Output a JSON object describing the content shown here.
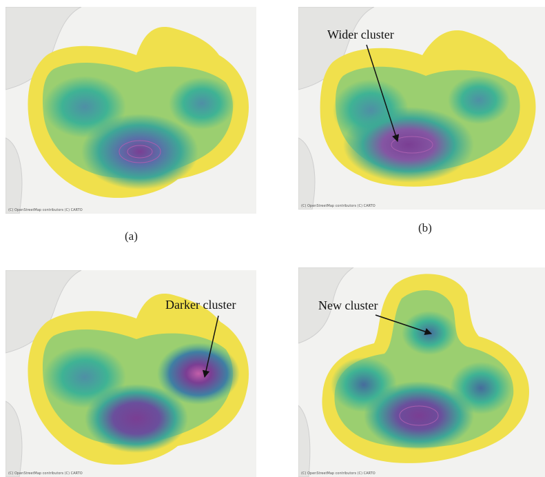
{
  "panels": [
    {
      "id": "a",
      "attribution": "(C) OpenStreetMap contributors (C) CARTO",
      "caption": "(a)",
      "annotation": ""
    },
    {
      "id": "b",
      "attribution": "(C) OpenStreetMap contributors (C) CARTO",
      "caption": "(b)",
      "annotation": "Wider cluster"
    },
    {
      "id": "c",
      "attribution": "(C) OpenStreetMap contributors (C) CARTO",
      "caption": "",
      "annotation": "Darker cluster"
    },
    {
      "id": "d",
      "attribution": "(C) OpenStreetMap contributors (C) CARTO",
      "caption": "",
      "annotation": "New cluster"
    }
  ],
  "colors": {
    "map_background": "#f2f2f0",
    "coastline": "#cfcfcf",
    "density_low": "#f2e64a",
    "density_mid": "#48b89a",
    "density_high": "#7a3e93"
  }
}
